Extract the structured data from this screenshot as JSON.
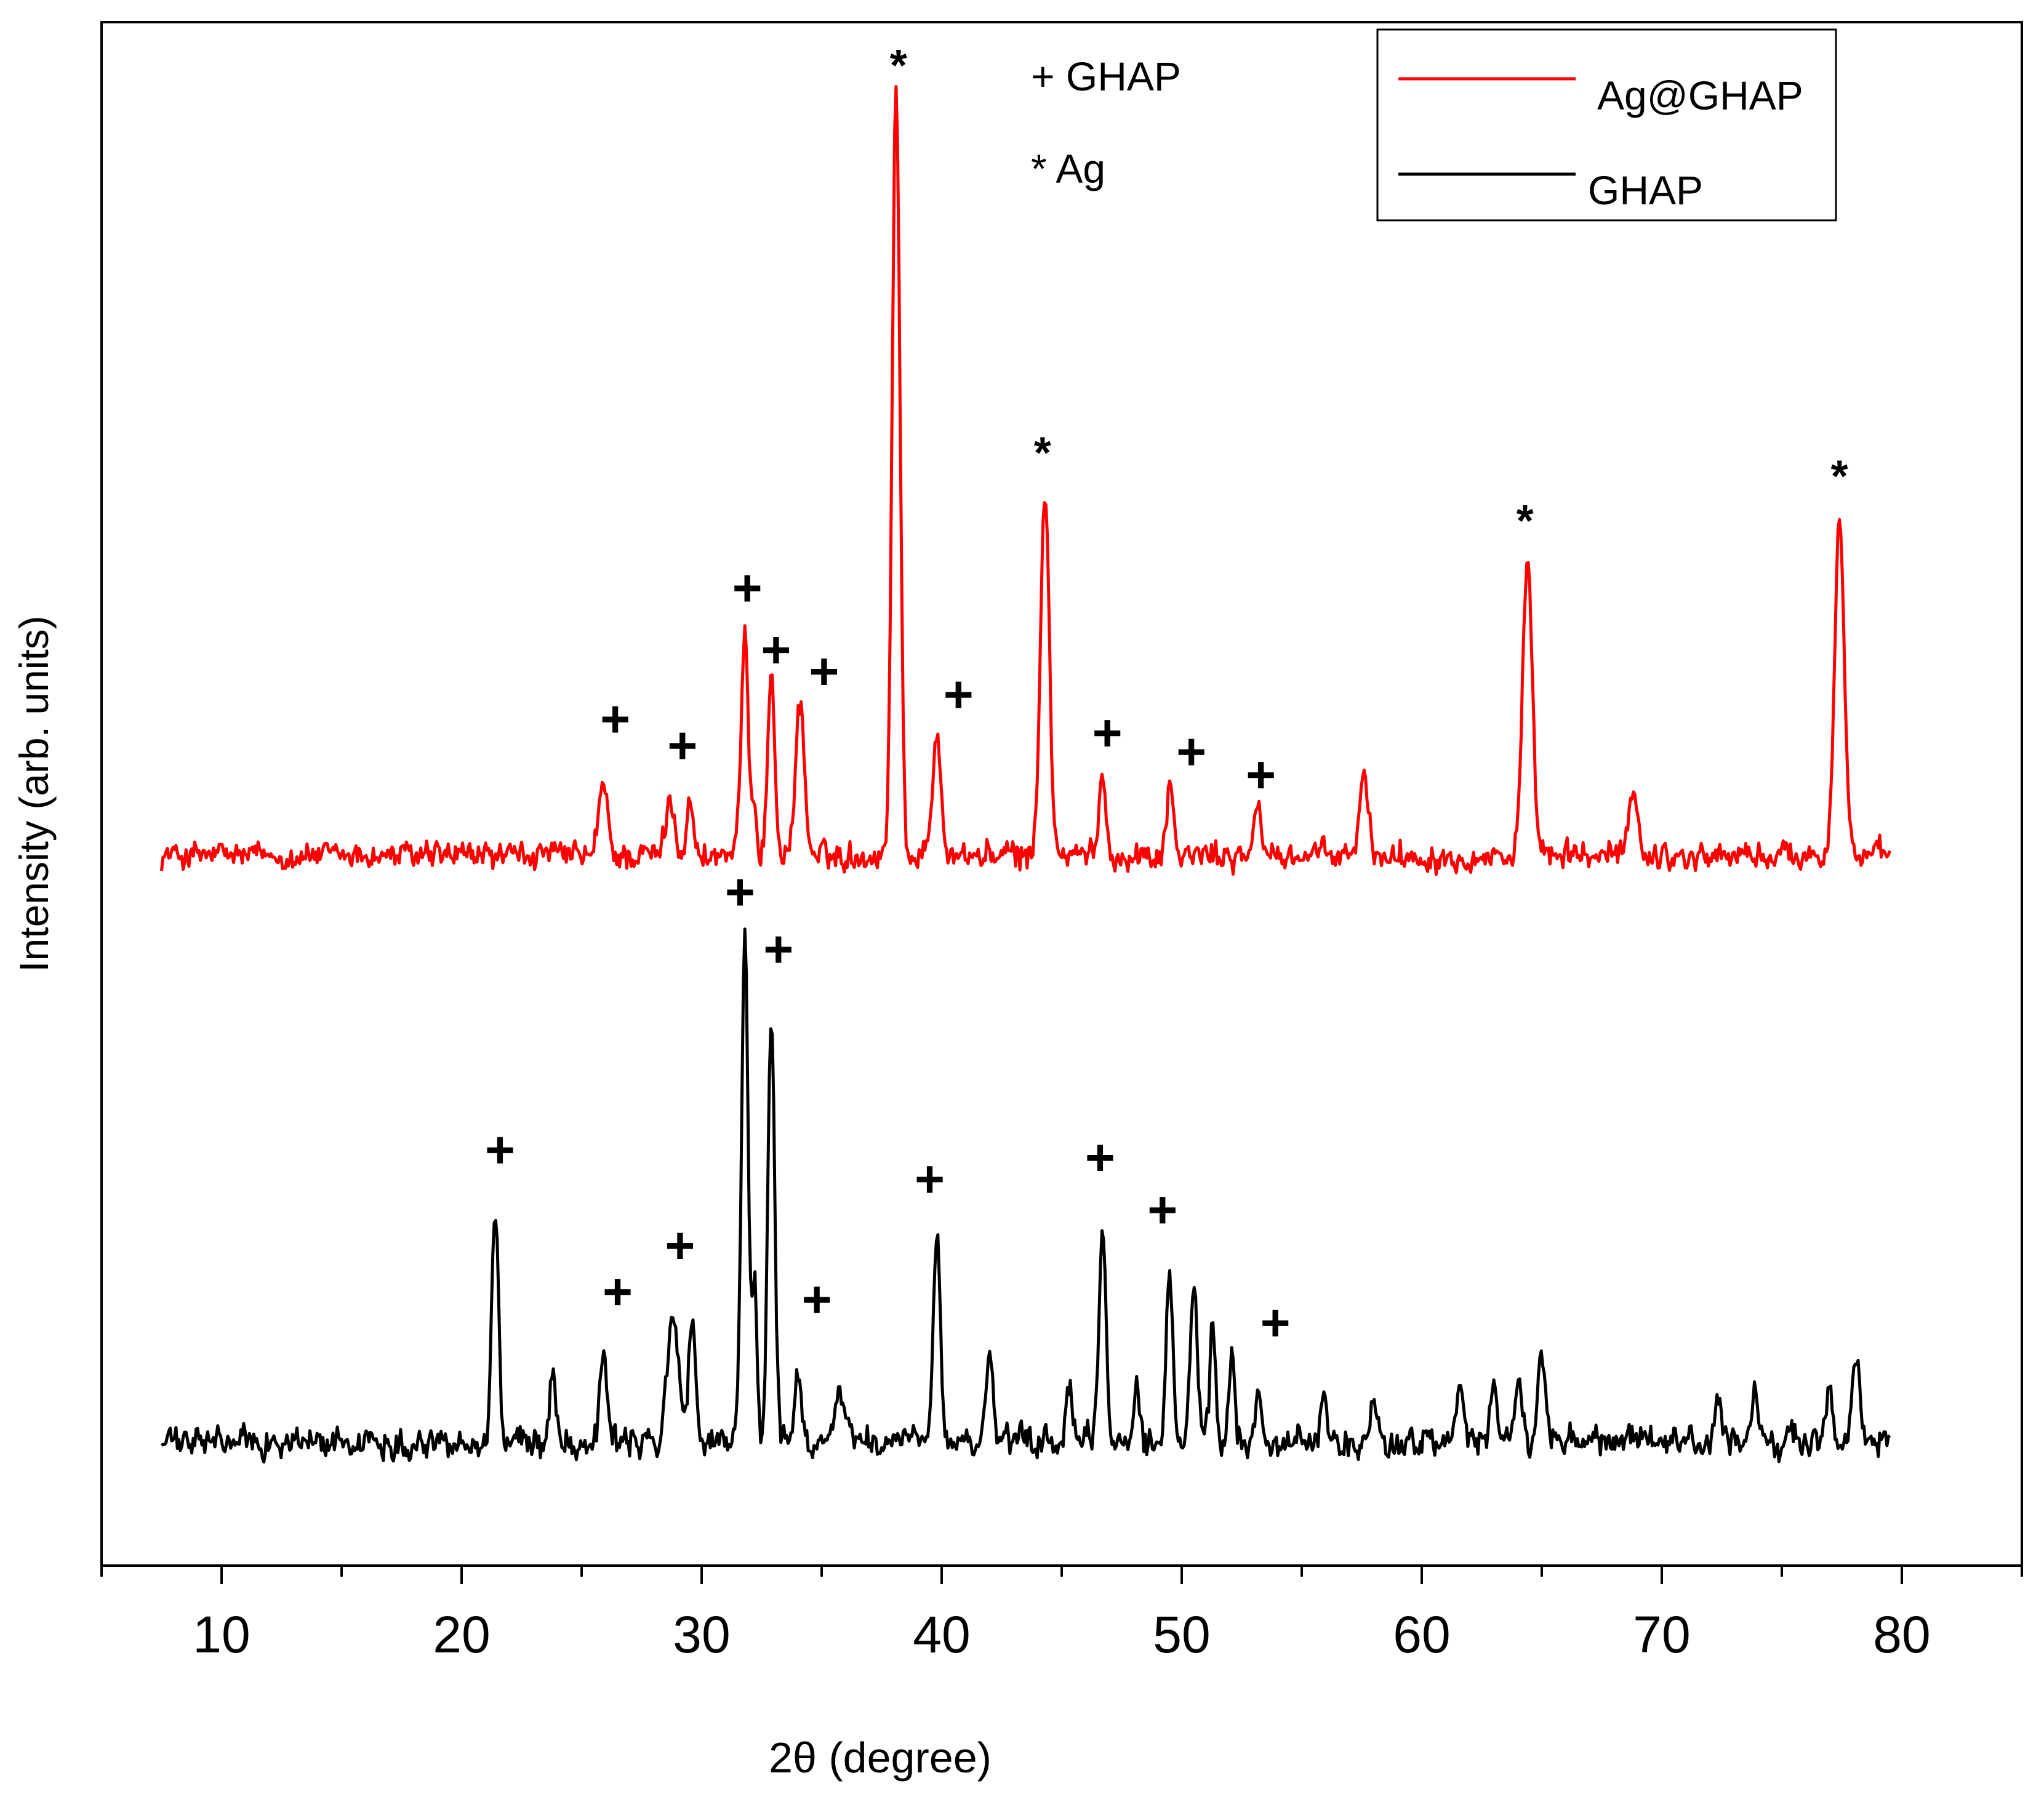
{
  "chart_data": {
    "type": "line",
    "title": "",
    "xlabel": "2θ (degree)",
    "ylabel": "Intensity (arb. units)",
    "xlim": [
      5,
      85
    ],
    "xticks": [
      10,
      20,
      30,
      40,
      50,
      60,
      70,
      80
    ],
    "ylim": [
      0,
      100
    ],
    "grid": false,
    "legend_position": "top-right",
    "marker_key": {
      "ghap": "+ GHAP",
      "ag": "* Ag"
    },
    "series": [
      {
        "name": "Ag@GHAP",
        "color": "#ff0000",
        "baseline": 46,
        "x_range": [
          7.5,
          79.5
        ],
        "noise": 1.2,
        "peaks": [
          {
            "x": 25.9,
            "h": 4.5,
            "w": 0.18
          },
          {
            "x": 28.7,
            "h": 3.5,
            "w": 0.2
          },
          {
            "x": 29.5,
            "h": 4.0,
            "w": 0.12
          },
          {
            "x": 31.8,
            "h": 14.0,
            "w": 0.15
          },
          {
            "x": 32.2,
            "h": 3.5,
            "w": 0.1
          },
          {
            "x": 32.9,
            "h": 11.5,
            "w": 0.15
          },
          {
            "x": 34.1,
            "h": 10.0,
            "w": 0.18
          },
          {
            "x": 38.1,
            "h": 50.0,
            "w": 0.16
          },
          {
            "x": 39.8,
            "h": 8.0,
            "w": 0.18
          },
          {
            "x": 44.3,
            "h": 24.0,
            "w": 0.18
          },
          {
            "x": 46.7,
            "h": 5.0,
            "w": 0.15
          },
          {
            "x": 49.5,
            "h": 4.5,
            "w": 0.15
          },
          {
            "x": 53.2,
            "h": 3.0,
            "w": 0.15
          },
          {
            "x": 57.6,
            "h": 5.0,
            "w": 0.18
          },
          {
            "x": 64.4,
            "h": 18.5,
            "w": 0.2
          },
          {
            "x": 68.8,
            "h": 4.5,
            "w": 0.18
          },
          {
            "x": 77.4,
            "h": 22.0,
            "w": 0.2
          }
        ]
      },
      {
        "name": "GHAP",
        "color": "#000000",
        "baseline": 8,
        "x_range": [
          7.5,
          79.5
        ],
        "noise": 1.3,
        "peaks": [
          {
            "x": 21.4,
            "h": 15.0,
            "w": 0.14
          },
          {
            "x": 23.8,
            "h": 5.0,
            "w": 0.13
          },
          {
            "x": 25.9,
            "h": 6.0,
            "w": 0.14
          },
          {
            "x": 28.8,
            "h": 8.5,
            "w": 0.22
          },
          {
            "x": 29.6,
            "h": 7.5,
            "w": 0.15
          },
          {
            "x": 31.8,
            "h": 33.0,
            "w": 0.14
          },
          {
            "x": 32.2,
            "h": 10.5,
            "w": 0.1
          },
          {
            "x": 32.9,
            "h": 28.0,
            "w": 0.14
          },
          {
            "x": 34.0,
            "h": 4.5,
            "w": 0.15
          },
          {
            "x": 35.8,
            "h": 3.0,
            "w": 0.25
          },
          {
            "x": 39.8,
            "h": 13.0,
            "w": 0.15
          },
          {
            "x": 42.0,
            "h": 5.5,
            "w": 0.13
          },
          {
            "x": 45.3,
            "h": 3.5,
            "w": 0.12
          },
          {
            "x": 46.7,
            "h": 14.0,
            "w": 0.14
          },
          {
            "x": 48.1,
            "h": 4.0,
            "w": 0.12
          },
          {
            "x": 49.5,
            "h": 10.5,
            "w": 0.14
          },
          {
            "x": 50.5,
            "h": 10.0,
            "w": 0.14
          },
          {
            "x": 51.3,
            "h": 7.5,
            "w": 0.12
          },
          {
            "x": 52.1,
            "h": 5.5,
            "w": 0.12
          },
          {
            "x": 53.2,
            "h": 4.0,
            "w": 0.12
          },
          {
            "x": 55.9,
            "h": 3.0,
            "w": 0.12
          },
          {
            "x": 58.0,
            "h": 2.5,
            "w": 0.14
          },
          {
            "x": 61.6,
            "h": 3.5,
            "w": 0.14
          },
          {
            "x": 63.0,
            "h": 3.5,
            "w": 0.14
          },
          {
            "x": 64.0,
            "h": 4.0,
            "w": 0.15
          },
          {
            "x": 65.0,
            "h": 5.5,
            "w": 0.15
          },
          {
            "x": 72.3,
            "h": 2.5,
            "w": 0.14
          },
          {
            "x": 73.9,
            "h": 3.0,
            "w": 0.14
          },
          {
            "x": 77.0,
            "h": 4.0,
            "w": 0.14
          },
          {
            "x": 78.1,
            "h": 5.0,
            "w": 0.16
          }
        ]
      }
    ],
    "annotations": [
      {
        "text": "+",
        "x": 26.4,
        "y": 54.7
      },
      {
        "text": "+",
        "x": 29.2,
        "y": 53.0
      },
      {
        "text": "+",
        "x": 31.9,
        "y": 63.2
      },
      {
        "text": "+",
        "x": 33.1,
        "y": 59.2
      },
      {
        "text": "+",
        "x": 35.1,
        "y": 57.8
      },
      {
        "text": "+",
        "x": 40.7,
        "y": 56.3
      },
      {
        "text": "+",
        "x": 46.9,
        "y": 53.8
      },
      {
        "text": "+",
        "x": 50.4,
        "y": 52.6
      },
      {
        "text": "+",
        "x": 53.3,
        "y": 51.1
      },
      {
        "text": "*",
        "x": 38.2,
        "y": 97.8
      },
      {
        "text": "*",
        "x": 44.2,
        "y": 72.7
      },
      {
        "text": "*",
        "x": 64.3,
        "y": 68.3
      },
      {
        "text": "*",
        "x": 77.4,
        "y": 71.2
      },
      {
        "text": "+",
        "x": 21.6,
        "y": 26.8
      },
      {
        "text": "+",
        "x": 26.5,
        "y": 17.6
      },
      {
        "text": "+",
        "x": 29.1,
        "y": 20.6
      },
      {
        "text": "+",
        "x": 31.6,
        "y": 43.5
      },
      {
        "text": "+",
        "x": 33.2,
        "y": 39.8
      },
      {
        "text": "+",
        "x": 34.8,
        "y": 17.1
      },
      {
        "text": "+",
        "x": 39.5,
        "y": 24.9
      },
      {
        "text": "+",
        "x": 46.6,
        "y": 26.3
      },
      {
        "text": "+",
        "x": 49.2,
        "y": 22.9
      },
      {
        "text": "+",
        "x": 53.9,
        "y": 15.6
      }
    ]
  }
}
